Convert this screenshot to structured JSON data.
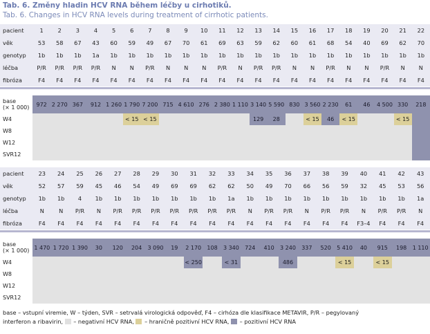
{
  "title": "Tab. 6. Změny hladin HCV RNA během léčby u cirhotiků.",
  "subtitle": "Tab. 6. Changes in HCV RNA levels during treatment of cirrhotic patients.",
  "row_labels": {
    "patient": "pacient",
    "age": "věk",
    "genotype": "genotyp",
    "treatment": "léčba",
    "fibrosis": "fibróza",
    "base_line1": "base",
    "base_line2": "(× 1 000)",
    "w4": "W4",
    "w8": "W8",
    "w12": "W12",
    "svr12": "SVR12"
  },
  "part1": {
    "patient": [
      "1",
      "2",
      "3",
      "4",
      "5",
      "6",
      "7",
      "8",
      "9",
      "10",
      "11",
      "12",
      "13",
      "14",
      "15",
      "16",
      "17",
      "18",
      "19",
      "20",
      "21",
      "22"
    ],
    "age": [
      "53",
      "58",
      "67",
      "43",
      "60",
      "59",
      "49",
      "67",
      "70",
      "61",
      "69",
      "63",
      "59",
      "62",
      "60",
      "61",
      "68",
      "54",
      "40",
      "69",
      "62",
      "70"
    ],
    "genotype": [
      "1b",
      "1b",
      "1b",
      "1a",
      "1b",
      "1b",
      "1b",
      "1b",
      "1b",
      "1b",
      "1b",
      "1b",
      "1b",
      "1b",
      "1b",
      "1b",
      "1b",
      "1b",
      "1b",
      "1b",
      "1b",
      "1b"
    ],
    "treatment": [
      "P/R",
      "P/R",
      "P/R",
      "P/R",
      "N",
      "N",
      "P/R",
      "N",
      "N",
      "N",
      "P/R",
      "N",
      "P/R",
      "P/R",
      "N",
      "N",
      "P/R",
      "N",
      "N",
      "P/R",
      "N",
      "N"
    ],
    "fibrosis": [
      "F4",
      "F4",
      "F4",
      "F4",
      "F4",
      "F4",
      "F4",
      "F4",
      "F4",
      "F4",
      "F4",
      "F4",
      "F4",
      "F4",
      "F4",
      "F4",
      "F4",
      "F4",
      "F4",
      "F4",
      "F4",
      "F4"
    ],
    "base": [
      "972",
      "2 270",
      "367",
      "912",
      "1 260",
      "1 790",
      "7 200",
      "715",
      "4 610",
      "276",
      "2 380",
      "1 110",
      "3 140",
      "5 590",
      "830",
      "3 560",
      "2 230",
      "61",
      "46",
      "4 500",
      "330",
      "218"
    ],
    "w4": [
      "",
      "",
      "",
      "",
      "",
      "< 15",
      "< 15",
      "",
      "",
      "",
      "",
      "",
      "129",
      "28",
      "",
      "< 15",
      "46",
      "< 15",
      "",
      "",
      "< 15",
      ""
    ],
    "w8": [
      "",
      "",
      "",
      "",
      "",
      "",
      "",
      "",
      "",
      "",
      "",
      "",
      "",
      "",
      "",
      "",
      "",
      "",
      "",
      "",
      "",
      ""
    ],
    "w12": [
      "",
      "",
      "",
      "",
      "",
      "",
      "",
      "",
      "",
      "",
      "",
      "",
      "",
      "",
      "",
      "",
      "",
      "",
      "",
      "",
      "",
      ""
    ],
    "svr12": [
      "",
      "",
      "",
      "",
      "",
      "",
      "",
      "",
      "",
      "",
      "",
      "",
      "",
      "",
      "",
      "",
      "",
      "",
      "",
      "",
      "",
      ""
    ]
  },
  "part2": {
    "patient": [
      "23",
      "24",
      "25",
      "26",
      "27",
      "28",
      "29",
      "30",
      "31",
      "32",
      "33",
      "34",
      "35",
      "36",
      "37",
      "38",
      "39",
      "40",
      "41",
      "42",
      "43"
    ],
    "age": [
      "52",
      "57",
      "59",
      "45",
      "46",
      "54",
      "49",
      "69",
      "69",
      "62",
      "62",
      "50",
      "49",
      "70",
      "66",
      "56",
      "59",
      "32",
      "45",
      "53",
      "56"
    ],
    "genotype": [
      "1b",
      "1b",
      "4",
      "1b",
      "1b",
      "1b",
      "1b",
      "1b",
      "1b",
      "1b",
      "1a",
      "1b",
      "1b",
      "1b",
      "1b",
      "1b",
      "1b",
      "1b",
      "1b",
      "1b",
      "1a"
    ],
    "treatment": [
      "N",
      "N",
      "P/R",
      "N",
      "P/R",
      "P/R",
      "P/R",
      "P/R",
      "P/R",
      "P/R",
      "P/R",
      "N",
      "P/R",
      "P/R",
      "N",
      "P/R",
      "P/R",
      "N",
      "P/R",
      "P/R",
      "N"
    ],
    "fibrosis": [
      "F4",
      "F4",
      "F4",
      "F4",
      "F4",
      "F4",
      "F4",
      "F4",
      "F4",
      "F4",
      "F4",
      "F4",
      "F4",
      "F4",
      "F4",
      "F4",
      "F4",
      "F3–4",
      "F4",
      "F4",
      "F4"
    ],
    "base": [
      "1 470",
      "1 720",
      "1 390",
      "30",
      "120",
      "204",
      "3 090",
      "19",
      "2 170",
      "108",
      "3 340",
      "724",
      "410",
      "3 240",
      "337",
      "520",
      "5 410",
      "40",
      "915",
      "198",
      "1 110"
    ],
    "w4": [
      "",
      "",
      "",
      "",
      "",
      "",
      "",
      "",
      "< 250",
      "",
      "< 31",
      "",
      "",
      "486",
      "",
      "",
      "< 15",
      "",
      "< 15",
      "",
      ""
    ],
    "w8": [
      "",
      "",
      "",
      "",
      "",
      "",
      "",
      "",
      "",
      "",
      "",
      "",
      "",
      "",
      "",
      "",
      "",
      "",
      "",
      "",
      ""
    ],
    "w12": [
      "",
      "",
      "",
      "",
      "",
      "",
      "",
      "",
      "",
      "",
      "",
      "",
      "",
      "",
      "",
      "",
      "",
      "",
      "",
      "",
      ""
    ],
    "svr12": [
      "",
      "",
      "",
      "",
      "",
      "",
      "",
      "",
      "",
      "",
      "",
      "",
      "",
      "",
      "",
      "",
      "",
      "",
      "",
      "",
      ""
    ]
  },
  "status": {
    "part1": {
      "w4": [
        "n",
        "n",
        "n",
        "n",
        "n",
        "b",
        "b",
        "n",
        "n",
        "n",
        "n",
        "n",
        "p",
        "p",
        "n",
        "b",
        "p",
        "b",
        "n",
        "n",
        "b",
        "p"
      ],
      "w8": [
        "n",
        "n",
        "n",
        "n",
        "n",
        "n",
        "n",
        "n",
        "n",
        "n",
        "n",
        "n",
        "n",
        "n",
        "n",
        "n",
        "n",
        "n",
        "n",
        "n",
        "n",
        "p"
      ],
      "w12": [
        "n",
        "n",
        "n",
        "n",
        "n",
        "n",
        "n",
        "n",
        "n",
        "n",
        "n",
        "n",
        "n",
        "n",
        "n",
        "n",
        "n",
        "n",
        "n",
        "n",
        "n",
        "p"
      ],
      "svr12": [
        "n",
        "n",
        "n",
        "n",
        "n",
        "n",
        "n",
        "n",
        "n",
        "n",
        "n",
        "n",
        "n",
        "n",
        "n",
        "n",
        "n",
        "n",
        "n",
        "n",
        "n",
        "p"
      ]
    },
    "part2": {
      "w4": [
        "n",
        "n",
        "n",
        "n",
        "n",
        "n",
        "n",
        "n",
        "p",
        "n",
        "p",
        "n",
        "n",
        "p",
        "n",
        "n",
        "b",
        "n",
        "b",
        "n",
        "n"
      ],
      "w8": [
        "n",
        "n",
        "n",
        "n",
        "n",
        "n",
        "n",
        "n",
        "n",
        "n",
        "n",
        "n",
        "n",
        "n",
        "n",
        "n",
        "n",
        "n",
        "n",
        "n",
        "n"
      ],
      "w12": [
        "n",
        "n",
        "n",
        "n",
        "n",
        "n",
        "n",
        "n",
        "n",
        "n",
        "n",
        "n",
        "n",
        "n",
        "n",
        "n",
        "n",
        "n",
        "n",
        "n",
        "n"
      ],
      "svr12": [
        "n",
        "n",
        "n",
        "n",
        "n",
        "n",
        "n",
        "n",
        "n",
        "n",
        "n",
        "n",
        "n",
        "n",
        "n",
        "n",
        "n",
        "n",
        "n",
        "n",
        "n"
      ]
    }
  },
  "footer": {
    "line1": "base – vstupní viremie, W – týden, SVR – setrvalá virologická odpověď, F4 – cirhóza dle klasifikace METAVIR, P/R – pegylovaný",
    "line2_prefix": "interferon a ribavirin,",
    "legend_negative": "– negativní HCV RNA,",
    "legend_borderline": "– hraničně pozitivní HCV RNA,",
    "legend_positive": "– pozitivní HCV RNA"
  },
  "colors": {
    "negative": "#e3e3e3",
    "borderline": "#dcd09a",
    "positive": "#8f92ae",
    "header_band": "#eaeaf3",
    "title": "#6b7bb0"
  }
}
